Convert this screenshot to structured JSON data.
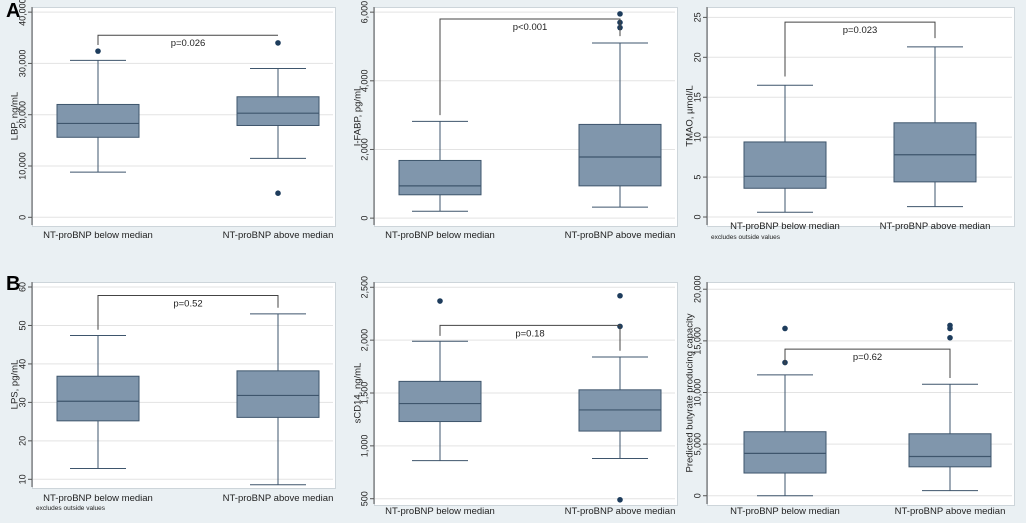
{
  "panel_letters": [
    "A",
    "B"
  ],
  "chart_data": [
    {
      "type": "box",
      "panel": "A",
      "ylabel": "LBP, ng/mL",
      "ylim": [
        -1500,
        41000
      ],
      "yticks": [
        0,
        10000,
        20000,
        30000,
        40000
      ],
      "ytick_labels": [
        "0",
        "10,000",
        "20,000",
        "30,000",
        "40,000"
      ],
      "categories": [
        "NT-proBNP below median",
        "NT-proBNP above median"
      ],
      "boxes": [
        {
          "whisker_low": 8800,
          "q1": 15600,
          "median": 18300,
          "q3": 22000,
          "whisker_high": 30600,
          "outliers": [
            32400
          ]
        },
        {
          "whisker_low": 11500,
          "q1": 17900,
          "median": 20300,
          "q3": 23500,
          "whisker_high": 29000,
          "outliers": [
            34000,
            4700
          ]
        }
      ],
      "bracket_y": 35500,
      "bracket_left_end": 33600,
      "bracket_right_end": 35500,
      "pvalue": "p=0.026",
      "note": ""
    },
    {
      "type": "box",
      "panel": "A",
      "ylabel": "I-FABP, pg/mL",
      "ylim": [
        -200,
        6150
      ],
      "yticks": [
        0,
        2000,
        4000,
        6000
      ],
      "ytick_labels": [
        "0",
        "2,000",
        "4,000",
        "6,000"
      ],
      "categories": [
        "NT-proBNP below median",
        "NT-proBNP above median"
      ],
      "boxes": [
        {
          "whisker_low": 200,
          "q1": 680,
          "median": 940,
          "q3": 1680,
          "whisker_high": 2820,
          "outliers": []
        },
        {
          "whisker_low": 320,
          "q1": 940,
          "median": 1780,
          "q3": 2730,
          "whisker_high": 5100,
          "outliers": [
            5950,
            5700,
            5550
          ]
        }
      ],
      "bracket_y": 5800,
      "bracket_left_end": 3000,
      "bracket_right_end": 5300,
      "pvalue": "p<0.001",
      "note": ""
    },
    {
      "type": "box",
      "panel": "A",
      "ylabel": "TMAO, µmol/L",
      "ylim": [
        -1,
        26.3
      ],
      "yticks": [
        0,
        5,
        10,
        15,
        20,
        25
      ],
      "ytick_labels": [
        "0",
        "5",
        "10",
        "15",
        "20",
        "25"
      ],
      "categories": [
        "NT-proBNP below median",
        "NT-proBNP above median"
      ],
      "boxes": [
        {
          "whisker_low": 0.6,
          "q1": 3.6,
          "median": 5.1,
          "q3": 9.4,
          "whisker_high": 16.5,
          "outliers": []
        },
        {
          "whisker_low": 1.3,
          "q1": 4.4,
          "median": 7.8,
          "q3": 11.8,
          "whisker_high": 21.3,
          "outliers": []
        }
      ],
      "bracket_y": 24.4,
      "bracket_left_end": 17.6,
      "bracket_right_end": 22.4,
      "pvalue": "p=0.023",
      "note": "excludes outside values"
    },
    {
      "type": "box",
      "panel": "B",
      "ylabel": "LPS, pg/mL",
      "ylim": [
        8,
        61.3
      ],
      "yticks": [
        10,
        20,
        30,
        40,
        50,
        60
      ],
      "ytick_labels": [
        "10",
        "20",
        "30",
        "40",
        "50",
        "60"
      ],
      "categories": [
        "NT-proBNP below median",
        "NT-proBNP above median"
      ],
      "boxes": [
        {
          "whisker_low": 12.8,
          "q1": 25.2,
          "median": 30.3,
          "q3": 36.8,
          "whisker_high": 47.4,
          "outliers": []
        },
        {
          "whisker_low": 8.6,
          "q1": 26.1,
          "median": 31.8,
          "q3": 38.2,
          "whisker_high": 53.0,
          "outliers": []
        }
      ],
      "bracket_y": 57.8,
      "bracket_left_end": 48.9,
      "bracket_right_end": 54.6,
      "pvalue": "p=0.52",
      "note": "excludes outside values"
    },
    {
      "type": "box",
      "panel": "B",
      "ylabel": "sCD14, ng/mL",
      "ylim": [
        450,
        2550
      ],
      "yticks": [
        500,
        1000,
        1500,
        2000,
        2500
      ],
      "ytick_labels": [
        "500",
        "1,000",
        "1,500",
        "2,000",
        "2,500"
      ],
      "categories": [
        "NT-proBNP below median",
        "NT-proBNP above median"
      ],
      "boxes": [
        {
          "whisker_low": 860,
          "q1": 1230,
          "median": 1400,
          "q3": 1610,
          "whisker_high": 1990,
          "outliers": [
            2370
          ]
        },
        {
          "whisker_low": 880,
          "q1": 1140,
          "median": 1340,
          "q3": 1530,
          "whisker_high": 1840,
          "outliers": [
            2420,
            2130,
            490
          ]
        }
      ],
      "bracket_y": 2140,
      "bracket_left_end": 2040,
      "bracket_right_end": 1900,
      "pvalue": "p=0.18",
      "note": ""
    },
    {
      "type": "box",
      "panel": "B",
      "ylabel": "Predicted butyrate producing capacity",
      "ylim": [
        -800,
        20700
      ],
      "yticks": [
        0,
        5000,
        10000,
        15000,
        20000
      ],
      "ytick_labels": [
        "0",
        "5,000",
        "10,000",
        "15,000",
        "20,000"
      ],
      "categories": [
        "NT-proBNP below median",
        "NT-proBNP above median"
      ],
      "boxes": [
        {
          "whisker_low": 0,
          "q1": 2200,
          "median": 4100,
          "q3": 6200,
          "whisker_high": 11700,
          "outliers": [
            16200,
            12900
          ]
        },
        {
          "whisker_low": 500,
          "q1": 2800,
          "median": 3800,
          "q3": 6000,
          "whisker_high": 10800,
          "outliers": [
            16500,
            16200,
            15300
          ]
        }
      ],
      "bracket_y": 14200,
      "bracket_left_end": 12700,
      "bracket_right_end": 11400,
      "pvalue": "p=0.62",
      "note": ""
    }
  ],
  "colors": {
    "box_fill": "#8096ac",
    "box_stroke": "#3e556c",
    "outlier": "#1d3c5c",
    "axis": "#555555",
    "grid": "#e3e3e3",
    "bracket": "#444444"
  }
}
